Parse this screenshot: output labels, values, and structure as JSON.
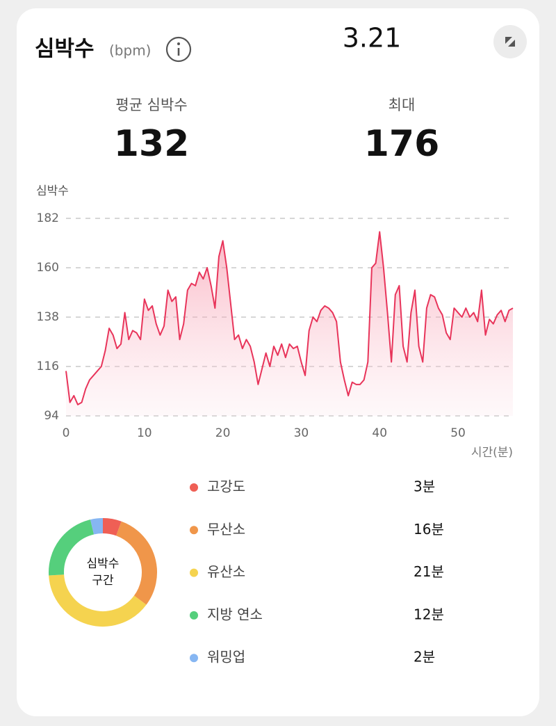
{
  "header": {
    "title": "심박수",
    "unit": "(bpm)",
    "date": "3.21"
  },
  "stats": [
    {
      "label": "평균 심박수",
      "value": 132
    },
    {
      "label": "최대",
      "value": 176
    }
  ],
  "chart_data": [
    {
      "type": "line",
      "ylabel": "심박수",
      "xlabel": "시간(분)",
      "color": "#e8345a",
      "x": [
        0,
        0.5,
        1,
        1.5,
        2,
        2.5,
        3,
        3.5,
        4,
        4.5,
        5,
        5.5,
        6,
        6.5,
        7,
        7.5,
        8,
        8.5,
        9,
        9.5,
        10,
        10.5,
        11,
        11.5,
        12,
        12.5,
        13,
        13.5,
        14,
        14.5,
        15,
        15.5,
        16,
        16.5,
        17,
        17.5,
        18,
        18.5,
        19,
        19.5,
        20,
        20.5,
        21,
        21.5,
        22,
        22.5,
        23,
        23.5,
        24,
        24.5,
        25,
        25.5,
        26,
        26.5,
        27,
        27.5,
        28,
        28.5,
        29,
        29.5,
        30,
        30.5,
        31,
        31.5,
        32,
        32.5,
        33,
        33.5,
        34,
        34.5,
        35,
        35.5,
        36,
        36.5,
        37,
        37.5,
        38,
        38.5,
        39,
        39.5,
        40,
        40.5,
        41,
        41.5,
        42,
        42.5,
        43,
        43.5,
        44,
        44.5,
        45,
        45.5,
        46,
        46.5,
        47,
        47.5,
        48,
        48.5,
        49,
        49.5,
        50,
        50.5,
        51,
        51.5,
        52,
        52.5,
        53,
        53.5,
        54,
        54.5,
        55,
        55.5,
        56,
        56.5,
        57
      ],
      "values": [
        114,
        100,
        103,
        99,
        100,
        106,
        110,
        112,
        114,
        116,
        123,
        133,
        130,
        124,
        126,
        140,
        128,
        132,
        131,
        128,
        146,
        141,
        143,
        135,
        130,
        134,
        150,
        145,
        147,
        128,
        135,
        150,
        153,
        152,
        158,
        155,
        160,
        152,
        142,
        165,
        172,
        160,
        144,
        128,
        130,
        124,
        128,
        125,
        118,
        108,
        115,
        122,
        116,
        125,
        121,
        126,
        120,
        126,
        124,
        125,
        118,
        112,
        132,
        138,
        136,
        141,
        143,
        142,
        140,
        136,
        118,
        110,
        103,
        109,
        108,
        108,
        110,
        118,
        160,
        162,
        176,
        160,
        140,
        118,
        148,
        152,
        125,
        118,
        140,
        150,
        125,
        118,
        142,
        148,
        147,
        142,
        139,
        131,
        128,
        142,
        140,
        138,
        142,
        138,
        140,
        136,
        150,
        130,
        137,
        135,
        139,
        141,
        136,
        141,
        142
      ],
      "xlim": [
        0,
        57
      ],
      "ylim": [
        94,
        182
      ],
      "xticks": [
        0,
        10,
        20,
        30,
        40,
        50
      ],
      "yticks": [
        94,
        116,
        138,
        160,
        182
      ],
      "grid": true
    },
    {
      "type": "donut",
      "center_label": [
        "심박수",
        "구간"
      ],
      "categories": [
        "고강도",
        "무산소",
        "유산소",
        "지방 연소",
        "워밍업"
      ],
      "values": [
        3,
        16,
        21,
        12,
        2
      ],
      "value_labels": [
        "3분",
        "16분",
        "21분",
        "12분",
        "2분"
      ],
      "colors": [
        "#ef5f55",
        "#f0964a",
        "#f5d34f",
        "#55cf7c",
        "#86b6f2"
      ]
    }
  ]
}
